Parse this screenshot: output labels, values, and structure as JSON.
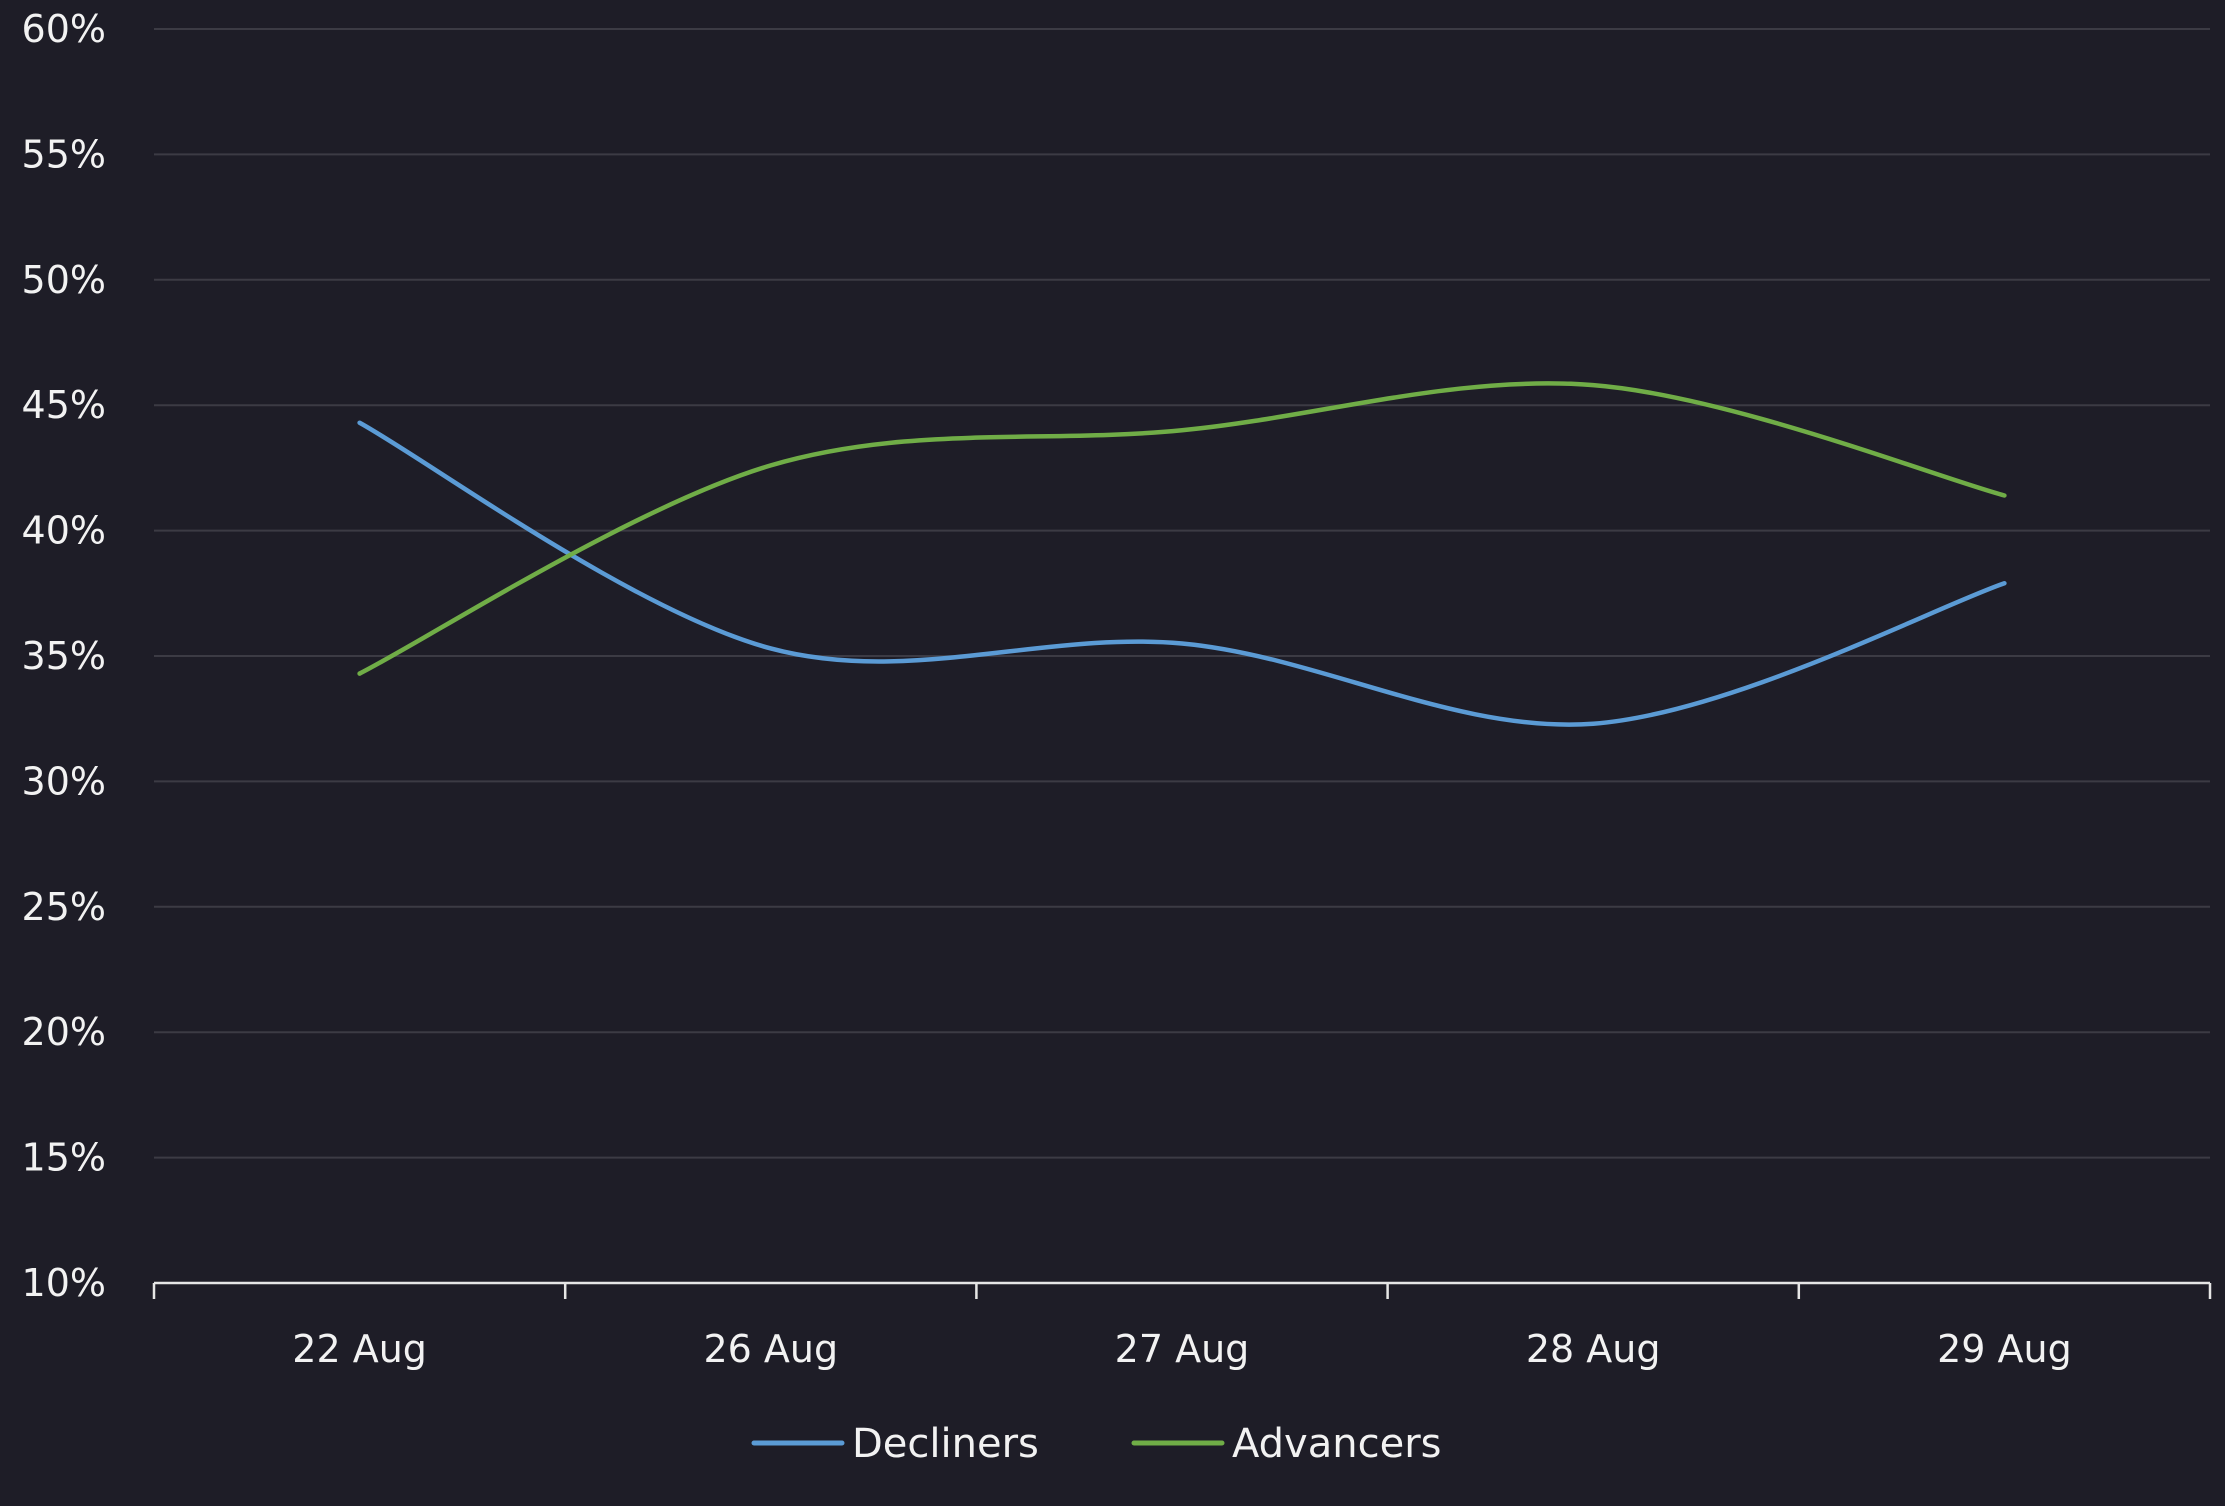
{
  "chart_data": {
    "type": "line",
    "categories": [
      "22 Aug",
      "26 Aug",
      "27 Aug",
      "28 Aug",
      "29 Aug"
    ],
    "series": [
      {
        "name": "Decliners",
        "color": "#5b9bd5",
        "values": [
          44.3,
          35.3,
          35.5,
          32.3,
          37.9
        ]
      },
      {
        "name": "Advancers",
        "color": "#70ad47",
        "values": [
          34.3,
          42.6,
          44.0,
          45.8,
          41.4
        ]
      }
    ],
    "y_ticks": [
      10,
      15,
      20,
      25,
      30,
      35,
      40,
      45,
      50,
      55,
      60
    ],
    "y_tick_labels": [
      "10%",
      "15%",
      "20%",
      "25%",
      "30%",
      "35%",
      "40%",
      "45%",
      "50%",
      "55%",
      "60%"
    ],
    "ylim": [
      10,
      60
    ],
    "grid": true,
    "smooth": true,
    "legend_position": "bottom-center",
    "colors": {
      "background": "#1e1d27",
      "gridline": "#3c3b44",
      "axis": "#e6e6e6",
      "text": "#f2f2f2"
    }
  }
}
